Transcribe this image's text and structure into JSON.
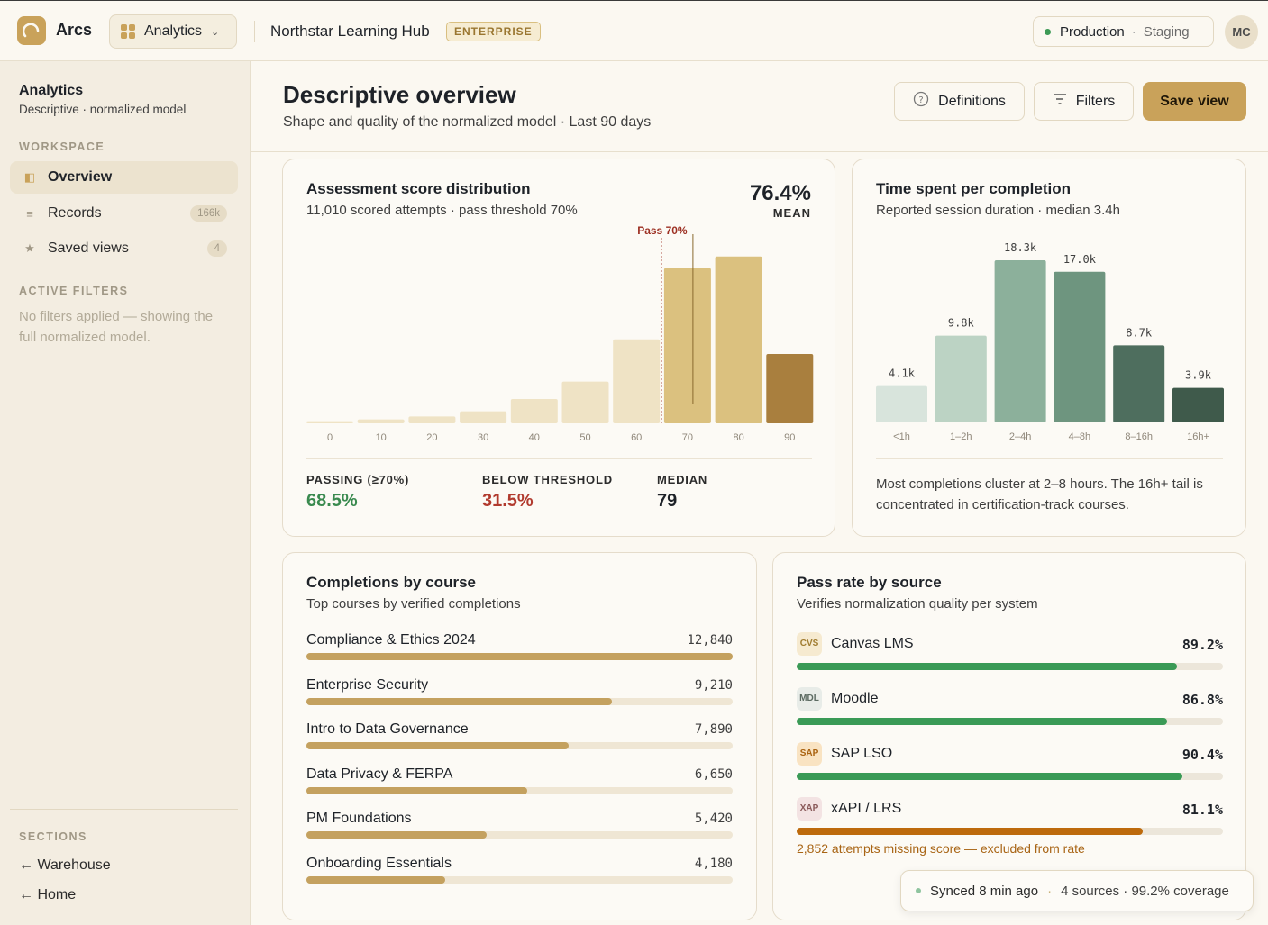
{
  "app": {
    "brand": "Arcs",
    "switcher_label": "Analytics",
    "hub_title": "Northstar Learning Hub",
    "plan_badge": "ENTERPRISE"
  },
  "env": {
    "active": "Production",
    "other": "Staging"
  },
  "user": {
    "initials": "MC"
  },
  "sidebar": {
    "title": "Analytics",
    "subtitle": "Descriptive · normalized model",
    "workspace_label": "WORKSPACE",
    "items": [
      {
        "label": "Overview",
        "icon": "panel-icon",
        "count": ""
      },
      {
        "label": "Records",
        "icon": "list-icon",
        "count": "166k"
      },
      {
        "label": "Saved views",
        "icon": "star-icon",
        "count": "4"
      }
    ],
    "filters_label": "ACTIVE FILTERS",
    "filters_note": "No filters applied — showing the full normalized model.",
    "sections_label": "SECTIONS",
    "links": [
      "← Warehouse",
      "← Home"
    ]
  },
  "header": {
    "title": "Descriptive overview",
    "subtitle": "Shape and quality of the normalized model · Last 90 days",
    "definitions_label": "Definitions",
    "filters_label": "Filters",
    "save_label": "Save view"
  },
  "score_card": {
    "title": "Assessment score distribution",
    "subtitle": "11,010 scored attempts · pass threshold 70%",
    "mean_value": "76.4%",
    "mean_label": "MEAN",
    "threshold_label": "Pass 70%",
    "stats": [
      {
        "label": "PASSING (≥70%)",
        "value": "68.5%"
      },
      {
        "label": "BELOW THRESHOLD",
        "value": "31.5%"
      },
      {
        "label": "MEDIAN",
        "value": "79"
      }
    ]
  },
  "time_card": {
    "title": "Time spent per completion",
    "subtitle": "Reported session duration · median 3.4h",
    "note": "Most completions cluster at 2–8 hours. The 16h+ tail is concentrated in certification-track courses."
  },
  "courses_card": {
    "title": "Completions by course",
    "subtitle": "Top courses by verified completions",
    "rows": [
      {
        "name": "Compliance & Ethics 2024",
        "value": 12840,
        "display": "12,840"
      },
      {
        "name": "Enterprise Security",
        "value": 9210,
        "display": "9,210"
      },
      {
        "name": "Intro to Data Governance",
        "value": 7890,
        "display": "7,890"
      },
      {
        "name": "Data Privacy & FERPA",
        "value": 6650,
        "display": "6,650"
      },
      {
        "name": "PM Foundations",
        "value": 5420,
        "display": "5,420"
      },
      {
        "name": "Onboarding Essentials",
        "value": 4180,
        "display": "4,180"
      }
    ]
  },
  "source_card": {
    "title": "Pass rate by source",
    "subtitle": "Verifies normalization quality per system",
    "rows": [
      {
        "badge": "CVS",
        "name": "Canvas LMS",
        "display": "89.2%",
        "value": 89.2,
        "color": "#3a9a56",
        "badge_bg": "#f6ead0",
        "badge_fg": "#a07c30"
      },
      {
        "badge": "MDL",
        "name": "Moodle",
        "display": "86.8%",
        "value": 86.8,
        "color": "#3a9a56",
        "badge_bg": "#e8ece8",
        "badge_fg": "#5c6b62"
      },
      {
        "badge": "SAP",
        "name": "SAP LSO",
        "display": "90.4%",
        "value": 90.4,
        "color": "#3a9a56",
        "badge_bg": "#f9e3c2",
        "badge_fg": "#a9620f"
      },
      {
        "badge": "XAP",
        "name": "xAPI / LRS",
        "display": "81.1%",
        "value": 81.1,
        "color": "#bd6a0c",
        "badge_bg": "#f3e3e3",
        "badge_fg": "#8a5a5a"
      }
    ],
    "warning": "2,852 attempts missing score — excluded from rate"
  },
  "toast": {
    "status": "Synced 8 min ago",
    "details": "4 sources · 99.2% coverage"
  },
  "chart_data": [
    {
      "type": "bar",
      "title": "Assessment score distribution",
      "categories": [
        "0",
        "10",
        "20",
        "30",
        "40",
        "50",
        "60",
        "70",
        "80",
        "90"
      ],
      "values": [
        1.2,
        2.2,
        3.8,
        6.7,
        13.5,
        23.2,
        46.6,
        86.2,
        92.6,
        38.5
      ],
      "threshold": 70,
      "colors": [
        "#efe3c5",
        "#efe3c5",
        "#efe3c5",
        "#efe3c5",
        "#efe3c5",
        "#efe3c5",
        "#efe3c5",
        "#dbc17f",
        "#dbc17f",
        "#a97f3e"
      ],
      "ylim": [
        0,
        100
      ]
    },
    {
      "type": "bar",
      "title": "Time spent per completion",
      "categories": [
        "<1h",
        "1–2h",
        "2–4h",
        "4–8h",
        "8–16h",
        "16h+"
      ],
      "values": [
        4.1,
        9.8,
        18.3,
        17.0,
        8.7,
        3.9
      ],
      "labels": [
        "4.1k",
        "9.8k",
        "18.3k",
        "17.0k",
        "8.7k",
        "3.9k"
      ],
      "colors": [
        "#d8e4dc",
        "#bcd3c4",
        "#8cb09b",
        "#6e957f",
        "#4e6e5e",
        "#3f5a4b"
      ],
      "ylim": [
        0,
        18.3
      ]
    }
  ]
}
